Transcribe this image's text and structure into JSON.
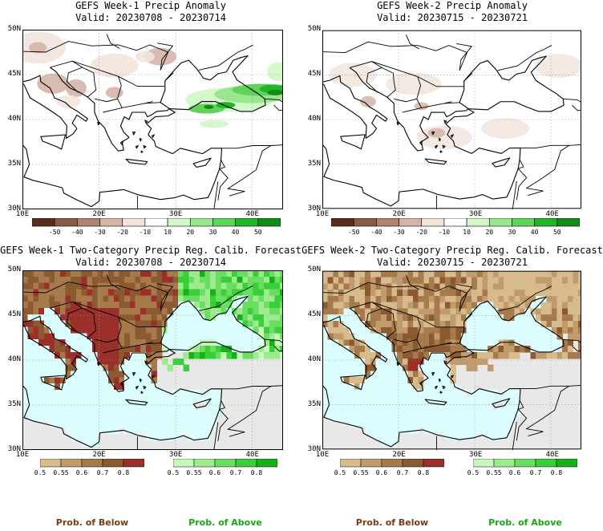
{
  "panels": {
    "tl": {
      "title": "GEFS Week-1 Precip Anomaly",
      "valid": "Valid: 20230708 - 20230714"
    },
    "tr": {
      "title": "GEFS Week-2 Precip Anomaly",
      "valid": "Valid: 20230715 - 20230721"
    },
    "bl": {
      "title": "GEFS Week-1 Two-Category Precip Reg. Calib. Forecast",
      "valid": "Valid: 20230708 - 20230714"
    },
    "br": {
      "title": "GEFS Week-2 Two-Category Precip Reg. Calib. Forecast",
      "valid": "Valid: 20230715 - 20230721"
    }
  },
  "axes": {
    "lat_labels": [
      "50N",
      "45N",
      "40N",
      "35N",
      "30N"
    ],
    "lon_labels": [
      "10E",
      "20E",
      "30E",
      "40E"
    ]
  },
  "anomaly_scale": {
    "labels": [
      "-50",
      "-40",
      "-30",
      "-20",
      "-10",
      "10",
      "20",
      "30",
      "40",
      "50"
    ],
    "colors": [
      "#5a2d1e",
      "#8b5a44",
      "#b08272",
      "#d4b4a8",
      "#f2e4dd",
      "#ffffff",
      "#d5f7cc",
      "#9ae68f",
      "#5fd35a",
      "#22b527",
      "#138a1a"
    ]
  },
  "prob_scale": {
    "below_labels": [
      "0.5",
      "0.55",
      "0.6",
      "0.7",
      "0.8"
    ],
    "above_labels": [
      "0.5",
      "0.55",
      "0.6",
      "0.7",
      "0.8"
    ],
    "below_colors": [
      "#d8bb8c",
      "#c29b6c",
      "#a77a4c",
      "#8c5a30",
      "#9b2f2a"
    ],
    "above_colors": [
      "#c8f7bc",
      "#9ceb8c",
      "#6ade60",
      "#38cf38",
      "#18b018"
    ]
  },
  "legend": {
    "below": "Prob. of Below",
    "above": "Prob. of Above"
  },
  "colors": {
    "ocean": "#dbfdfd",
    "nodata": "#e8e8e8",
    "below_text": "#7a3b12",
    "above_text": "#17a817"
  }
}
